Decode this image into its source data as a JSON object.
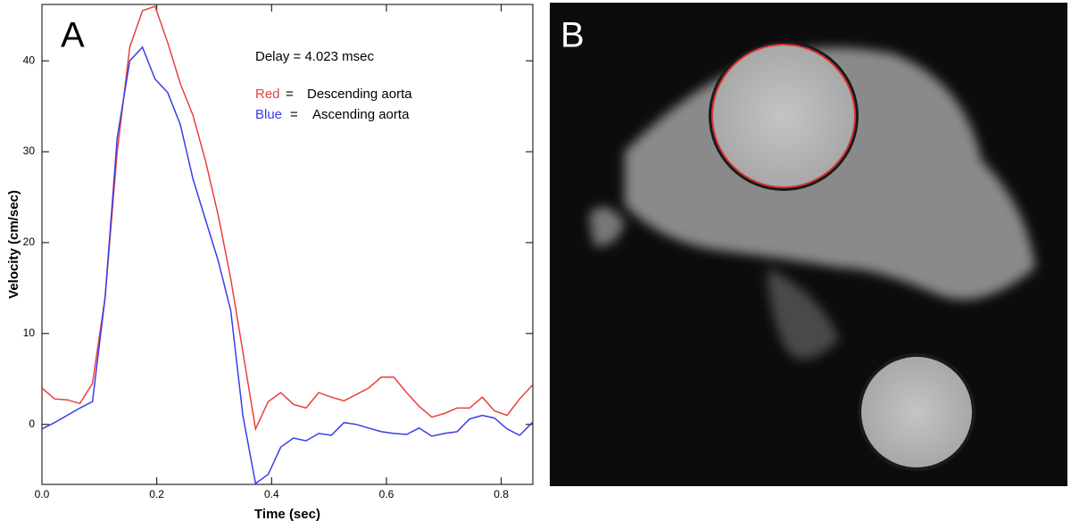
{
  "chart_data": {
    "type": "line",
    "panel_labels": [
      "A",
      "B"
    ],
    "annotation": "Delay = 4.023 msec",
    "xlabel": "Time (sec)",
    "ylabel": "Velocity (cm/sec)",
    "x": [
      0,
      0.022,
      0.044,
      0.066,
      0.088,
      0.11,
      0.131,
      0.153,
      0.175,
      0.197,
      0.219,
      0.241,
      0.263,
      0.285,
      0.307,
      0.329,
      0.35,
      0.372,
      0.394,
      0.416,
      0.438,
      0.46,
      0.482,
      0.504,
      0.526,
      0.548,
      0.569,
      0.591,
      0.613,
      0.635,
      0.657,
      0.679,
      0.701,
      0.723,
      0.745,
      0.767,
      0.788,
      0.81,
      0.832,
      0.854
    ],
    "series": [
      {
        "name": "Descending aorta",
        "key": "Red",
        "separator": "=",
        "color": "#e8413c",
        "values": [
          4.0,
          2.8,
          2.7,
          2.3,
          4.5,
          14,
          30,
          41.5,
          45.5,
          46,
          42,
          37.5,
          34,
          29,
          23,
          16,
          8,
          -0.5,
          2.5,
          3.5,
          2.2,
          1.8,
          3.5,
          3.0,
          2.6,
          3.3,
          4.0,
          5.2,
          5.2,
          3.5,
          2.0,
          0.8,
          1.2,
          1.8,
          1.8,
          3.0,
          1.5,
          1.0,
          2.8,
          4.3
        ]
      },
      {
        "name": "Ascending aorta",
        "key": "Blue",
        "separator": "=",
        "color": "#3b3be8",
        "values": [
          -0.5,
          0.2,
          1.0,
          1.8,
          2.5,
          14,
          31.5,
          40,
          41.5,
          38,
          36.5,
          33,
          27,
          22.5,
          18,
          12.5,
          1.0,
          -6.5,
          -5.5,
          -2.5,
          -1.5,
          -1.8,
          -1.0,
          -1.2,
          0.2,
          0.0,
          -0.4,
          -0.8,
          -1.0,
          -1.1,
          -0.4,
          -1.3,
          -1.0,
          -0.8,
          0.6,
          1.0,
          0.7,
          -0.5,
          -1.2,
          0.2
        ]
      }
    ],
    "xlim": [
      0,
      0.855
    ],
    "xticks": [
      {
        "value": 0,
        "label": "0.0"
      },
      0.2,
      0.4,
      0.6,
      0.8
    ],
    "ylim": [
      -6.6,
      46.2
    ],
    "yticks": [
      0,
      10,
      20,
      30,
      40
    ]
  }
}
